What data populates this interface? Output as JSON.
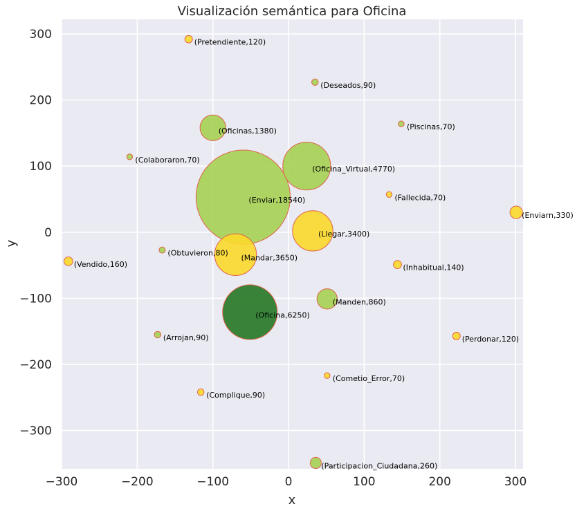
{
  "chart_data": {
    "type": "scatter",
    "title": "Visualización semántica para Oficina",
    "xlabel": "x",
    "ylabel": "y",
    "xlim": [
      -300,
      310
    ],
    "ylim": [
      -358,
      322
    ],
    "xticks": [
      -300,
      -200,
      -100,
      0,
      100,
      200,
      300
    ],
    "yticks": [
      -300,
      -200,
      -100,
      0,
      100,
      200,
      300
    ],
    "grid": true,
    "colors": {
      "background": "#eaeaf2",
      "yellow": "#fcd92b",
      "light_green": "#a6d153",
      "dark_green": "#2e7d2e",
      "edge": "#e0604a"
    },
    "points": [
      {
        "label": "(Pretendiente,120)",
        "x": -132,
        "y": 292,
        "size": 120,
        "color": "yellow"
      },
      {
        "label": "(Deseados,90)",
        "x": 35,
        "y": 227,
        "size": 90,
        "color": "light_green"
      },
      {
        "label": "(Piscinas,70)",
        "x": 149,
        "y": 164,
        "size": 70,
        "color": "light_green"
      },
      {
        "label": "(Oficinas,1380)",
        "x": -100,
        "y": 158,
        "size": 1380,
        "color": "light_green"
      },
      {
        "label": "(Colaboraron,70)",
        "x": -210,
        "y": 114,
        "size": 70,
        "color": "light_green"
      },
      {
        "label": "(Oficina_Virtual,4770)",
        "x": 24,
        "y": 100,
        "size": 4770,
        "color": "light_green"
      },
      {
        "label": "(Fallecida,70)",
        "x": 133,
        "y": 57,
        "size": 70,
        "color": "yellow"
      },
      {
        "label": "(Enviar,18540)",
        "x": -60,
        "y": 53,
        "size": 18540,
        "color": "light_green"
      },
      {
        "label": "(Enviarn,330)",
        "x": 301,
        "y": 30,
        "size": 330,
        "color": "yellow"
      },
      {
        "label": "(Llegar,3400)",
        "x": 32,
        "y": 2,
        "size": 3400,
        "color": "yellow"
      },
      {
        "label": "(Obtuvieron,80)",
        "x": -167,
        "y": -27,
        "size": 80,
        "color": "light_green"
      },
      {
        "label": "(Mandar,3650)",
        "x": -70,
        "y": -34,
        "size": 3650,
        "color": "yellow"
      },
      {
        "label": "(Vendido,160)",
        "x": -291,
        "y": -44,
        "size": 160,
        "color": "yellow"
      },
      {
        "label": "(Inhabitual,140)",
        "x": 144,
        "y": -49,
        "size": 140,
        "color": "yellow"
      },
      {
        "label": "(Manden,860)",
        "x": 51,
        "y": -101,
        "size": 860,
        "color": "light_green"
      },
      {
        "label": "(Oficina,6250)",
        "x": -51,
        "y": -121,
        "size": 6250,
        "color": "dark_green"
      },
      {
        "label": "(Arrojan,90)",
        "x": -173,
        "y": -155,
        "size": 90,
        "color": "light_green"
      },
      {
        "label": "(Perdonar,120)",
        "x": 222,
        "y": -157,
        "size": 120,
        "color": "yellow"
      },
      {
        "label": "(Cometio_Error,70)",
        "x": 51,
        "y": -217,
        "size": 70,
        "color": "yellow"
      },
      {
        "label": "(Complique,90)",
        "x": -116,
        "y": -242,
        "size": 90,
        "color": "yellow"
      },
      {
        "label": "(Participacion_Ciudadana,260)",
        "x": 36,
        "y": -349,
        "size": 260,
        "color": "light_green"
      }
    ]
  }
}
